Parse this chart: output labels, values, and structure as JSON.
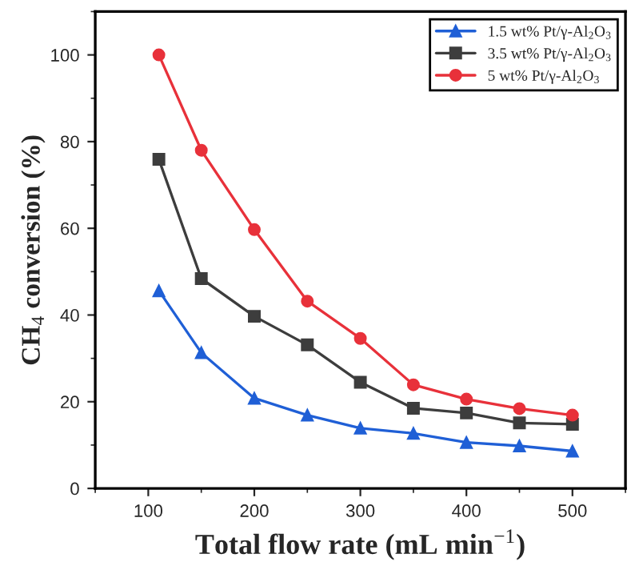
{
  "chart_data": {
    "type": "line",
    "xlabel": "Total flow rate (mL min$^{−1}$)",
    "ylabel": "CH$_{4}$ conversion (%)",
    "x": [
      110,
      150,
      200,
      250,
      300,
      350,
      400,
      450,
      500
    ],
    "series": [
      {
        "name": "1.5 wt% Pt/γ-Al$_{2}$O$_{3}$",
        "color": "#1f5fd6",
        "marker": "triangle",
        "values": [
          45.6,
          31.3,
          20.8,
          16.9,
          13.9,
          12.7,
          10.6,
          9.8,
          8.6
        ]
      },
      {
        "name": "3.5 wt% Pt/γ-Al$_{2}$O$_{3}$",
        "color": "#3d3d3d",
        "marker": "square",
        "values": [
          75.9,
          48.4,
          39.7,
          33.1,
          24.5,
          18.5,
          17.4,
          15.1,
          14.8
        ]
      },
      {
        "name": "5 wt% Pt/γ-Al$_{2}$O$_{3}$",
        "color": "#e8313a",
        "marker": "circle",
        "values": [
          100,
          78.0,
          59.7,
          43.2,
          34.6,
          23.9,
          20.6,
          18.4,
          16.9
        ]
      }
    ],
    "xlim": [
      50,
      550
    ],
    "xticks": [
      100,
      200,
      300,
      400,
      500
    ],
    "ylim": [
      0,
      110
    ],
    "yticks": [
      0,
      20,
      40,
      60,
      80,
      100
    ],
    "grid": false,
    "legend": "top right",
    "line_style": "solid"
  }
}
